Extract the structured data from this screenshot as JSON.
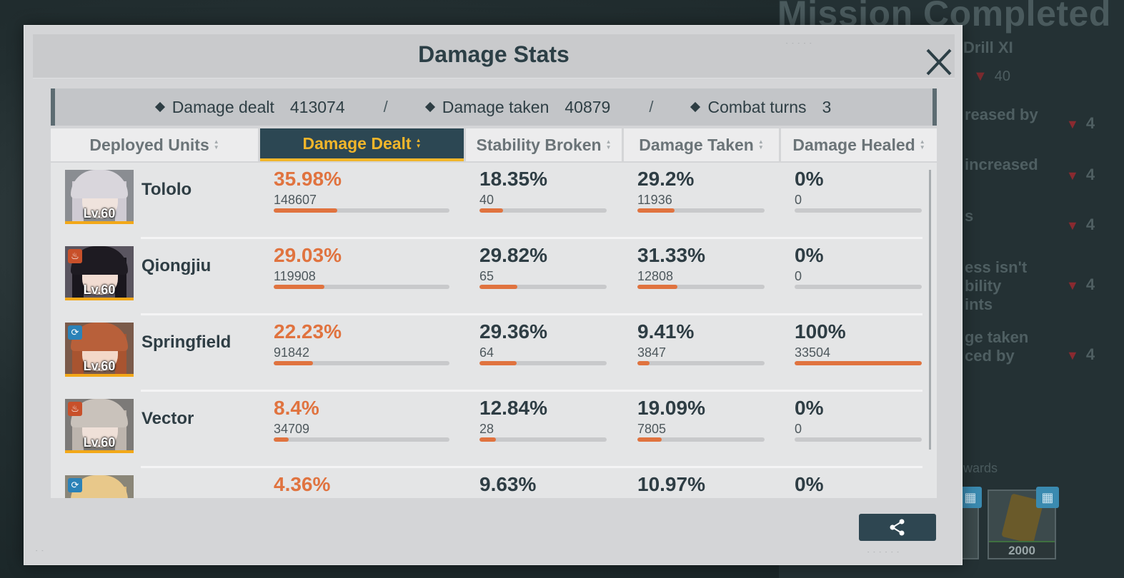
{
  "background": {
    "title": "Mission Completed",
    "subtitle": "Drill XI",
    "score": "40",
    "lines": [
      "reased by",
      "increased",
      "s",
      "ess isn't\nbility\nints",
      "ge taken\nced by"
    ],
    "values": [
      "4",
      "4",
      "4",
      "4",
      "4"
    ],
    "rewards_label": "wards",
    "reward_amount": "2000"
  },
  "modal": {
    "title": "Damage Stats"
  },
  "summary": {
    "damage_dealt_label": "Damage dealt",
    "damage_dealt_value": "413074",
    "damage_taken_label": "Damage taken",
    "damage_taken_value": "40879",
    "combat_turns_label": "Combat turns",
    "combat_turns_value": "3",
    "separator": "/"
  },
  "columns": [
    {
      "label": "Deployed Units",
      "active": false
    },
    {
      "label": "Damage Dealt",
      "active": true
    },
    {
      "label": "Stability Broken",
      "active": false
    },
    {
      "label": "Damage Taken",
      "active": false
    },
    {
      "label": "Damage Healed",
      "active": false
    }
  ],
  "units": [
    {
      "name": "Tololo",
      "level": "Lv.60",
      "badge": "",
      "damage_dealt": {
        "pct": "35.98%",
        "value": "148607",
        "fraction": 0.3598
      },
      "stability_broken": {
        "pct": "18.35%",
        "value": "40",
        "fraction": 0.1835
      },
      "damage_taken": {
        "pct": "29.2%",
        "value": "11936",
        "fraction": 0.292
      },
      "damage_healed": {
        "pct": "0%",
        "value": "0",
        "fraction": 0
      }
    },
    {
      "name": "Qiongjiu",
      "level": "Lv.60",
      "badge": "fire",
      "damage_dealt": {
        "pct": "29.03%",
        "value": "119908",
        "fraction": 0.2903
      },
      "stability_broken": {
        "pct": "29.82%",
        "value": "65",
        "fraction": 0.2982
      },
      "damage_taken": {
        "pct": "31.33%",
        "value": "12808",
        "fraction": 0.3133
      },
      "damage_healed": {
        "pct": "0%",
        "value": "0",
        "fraction": 0
      }
    },
    {
      "name": "Springfield",
      "level": "Lv.60",
      "badge": "cycle",
      "damage_dealt": {
        "pct": "22.23%",
        "value": "91842",
        "fraction": 0.2223
      },
      "stability_broken": {
        "pct": "29.36%",
        "value": "64",
        "fraction": 0.2936
      },
      "damage_taken": {
        "pct": "9.41%",
        "value": "3847",
        "fraction": 0.0941
      },
      "damage_healed": {
        "pct": "100%",
        "value": "33504",
        "fraction": 1.0
      }
    },
    {
      "name": "Vector",
      "level": "Lv.60",
      "badge": "fire",
      "damage_dealt": {
        "pct": "8.4%",
        "value": "34709",
        "fraction": 0.084
      },
      "stability_broken": {
        "pct": "12.84%",
        "value": "28",
        "fraction": 0.1284
      },
      "damage_taken": {
        "pct": "19.09%",
        "value": "7805",
        "fraction": 0.1909
      },
      "damage_healed": {
        "pct": "0%",
        "value": "0",
        "fraction": 0
      }
    },
    {
      "name": "",
      "level": "",
      "badge": "cycle",
      "damage_dealt": {
        "pct": "4.36%",
        "value": "",
        "fraction": 0.0436
      },
      "stability_broken": {
        "pct": "9.63%",
        "value": "",
        "fraction": 0.0963
      },
      "damage_taken": {
        "pct": "10.97%",
        "value": "",
        "fraction": 0.1097
      },
      "damage_healed": {
        "pct": "0%",
        "value": "",
        "fraction": 0
      }
    }
  ],
  "icons": {
    "close": "close-icon",
    "share": "share-icon",
    "sort": "sort-icon",
    "fire": "fire-icon",
    "cycle": "cycle-icon"
  },
  "colors": {
    "accent": "#e0733f",
    "active_header_bg": "#2c4753",
    "active_header_text": "#f2b62a"
  }
}
